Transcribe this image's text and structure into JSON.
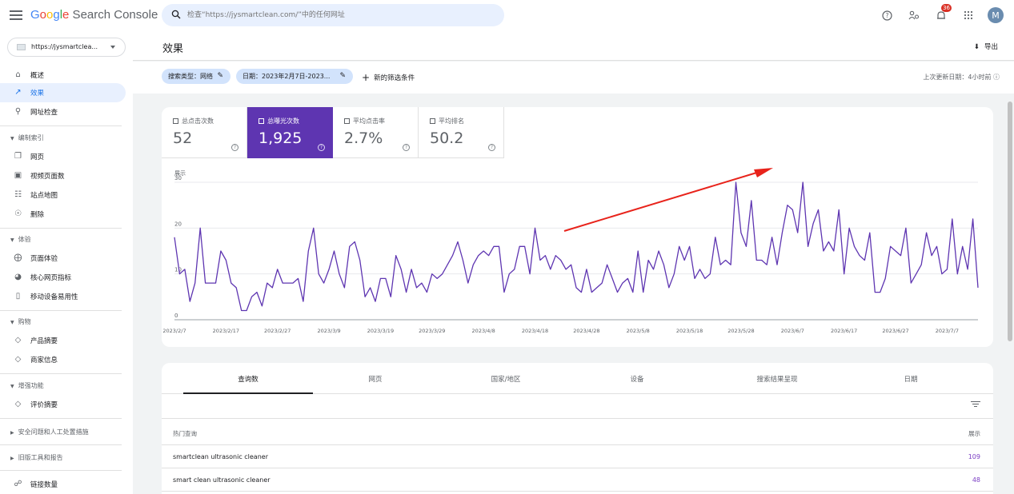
{
  "header": {
    "logo_word": "Google",
    "logo_rest": " Search Console",
    "search_placeholder": "检查“https://jysmartclean.com/”中的任何网址",
    "notification_count": "36",
    "avatar_letter": "M"
  },
  "sidebar": {
    "property": "https://jysmartclea...",
    "overview": "概述",
    "performance": "效果",
    "url_inspection": "网址检查",
    "index_section": "编制索引",
    "pages": "网页",
    "video_pages": "视频页面数",
    "sitemaps": "站点地图",
    "removals": "删除",
    "experience_section": "体验",
    "page_experience": "页面体验",
    "core_web_vitals": "核心网页指标",
    "mobile_usability": "移动设备易用性",
    "shopping_section": "购物",
    "product_snippets": "产品摘要",
    "merchant_listings": "商家信息",
    "enhancements_section": "增强功能",
    "review_snippets": "评价摘要",
    "security_section": "安全问题和人工处置措施",
    "legacy_section": "旧版工具和报告",
    "links": "链接数量"
  },
  "main": {
    "title": "效果",
    "export_label": "导出",
    "chip_search_type": "搜索类型：网络",
    "chip_date": "日期：2023年2月7日-2023...",
    "add_filter": "新的筛选条件",
    "last_update": "上次更新日期：4小时前"
  },
  "metrics": [
    {
      "label": "总点击次数",
      "value": "52",
      "selected": false
    },
    {
      "label": "总曝光次数",
      "value": "1,925",
      "selected": true
    },
    {
      "label": "平均点击率",
      "value": "2.7%",
      "selected": false
    },
    {
      "label": "平均排名",
      "value": "50.2",
      "selected": false
    }
  ],
  "chart_data": {
    "type": "line",
    "ylabel": "展示",
    "ylim": [
      0,
      30
    ],
    "yticks": [
      0,
      10,
      20,
      30
    ],
    "xticklabels": [
      "2023/2/7",
      "2023/2/17",
      "2023/2/27",
      "2023/3/9",
      "2023/3/19",
      "2023/3/29",
      "2023/4/8",
      "2023/4/18",
      "2023/4/28",
      "2023/5/8",
      "2023/5/18",
      "2023/5/28",
      "2023/6/7",
      "2023/6/17",
      "2023/6/27",
      "2023/7/7"
    ],
    "grid": true,
    "color": "#5e35b1",
    "series": [
      {
        "values": [
          18,
          10,
          11,
          4,
          8,
          20,
          8,
          8,
          8,
          15,
          13,
          8,
          7,
          2,
          2,
          5,
          6,
          3,
          8,
          7,
          11,
          8,
          8,
          8,
          9,
          4,
          15,
          20,
          10,
          8,
          11,
          15,
          10,
          7,
          16,
          17,
          13,
          5,
          7,
          4,
          9,
          9,
          5,
          14,
          11,
          6,
          11,
          7,
          8,
          6,
          10,
          9,
          10,
          12,
          14,
          17,
          13,
          8,
          12,
          14,
          15,
          14,
          16,
          16,
          6,
          10,
          11,
          16,
          16,
          10,
          20,
          13,
          14,
          11,
          14,
          13,
          11,
          12,
          7,
          6,
          11,
          6,
          7,
          8,
          12,
          9,
          6,
          8,
          9,
          6,
          15,
          6,
          13,
          11,
          15,
          12,
          7,
          10,
          16,
          13,
          16,
          9,
          11,
          9,
          10,
          18,
          12,
          13,
          12,
          30,
          19,
          16,
          26,
          13,
          13,
          12,
          18,
          12,
          19,
          25,
          24,
          19,
          30,
          16,
          21,
          24,
          15,
          17,
          15,
          24,
          10,
          20,
          16,
          14,
          13,
          19,
          6,
          6,
          9,
          16,
          15,
          14,
          20,
          8,
          10,
          12,
          19,
          14,
          16,
          10,
          11,
          22,
          10,
          16,
          11,
          22,
          7
        ]
      }
    ],
    "annotation": "red arrow pointing up-right"
  },
  "tabs": [
    "查询数",
    "网页",
    "国家/地区",
    "设备",
    "搜索结果呈现",
    "日期"
  ],
  "table": {
    "col_query": "热门查询",
    "col_value": "展示",
    "rows": [
      {
        "query": "smartclean ultrasonic cleaner",
        "value": "109"
      },
      {
        "query": "smart clean ultrasonic cleaner",
        "value": "48"
      }
    ]
  }
}
